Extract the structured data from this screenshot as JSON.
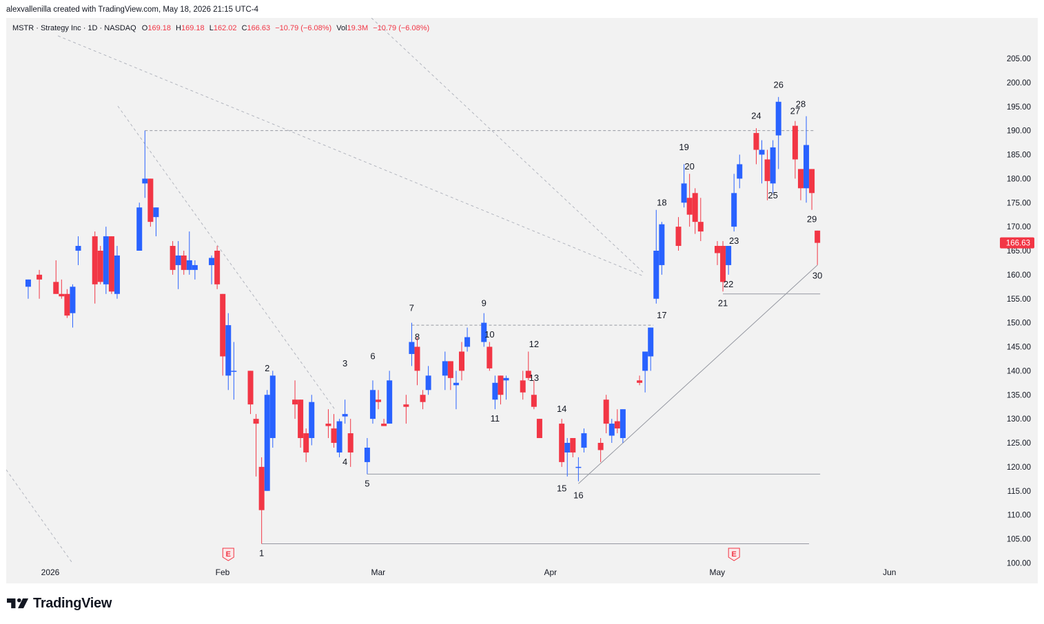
{
  "header": {
    "credit": "alexvallenilla created with TradingView.com, May 18, 2026 21:15 UTC-4"
  },
  "legend": {
    "symbol": "MSTR · Strategy Inc · 1D · NASDAQ",
    "open_label": "O",
    "open": "169.18",
    "high_label": "H",
    "high": "169.18",
    "low_label": "L",
    "low": "162.02",
    "close_label": "C",
    "close": "166.63",
    "change": "−10.79 (−6.08%)",
    "vol_label": "Vol",
    "vol": "19.3M",
    "vol_change": "−10.79 (−6.08%)"
  },
  "footer": {
    "brand": "TradingView"
  },
  "colors": {
    "up": "#2962ff",
    "down": "#f23645",
    "price_tag": "#f23645",
    "background": "#f2f2f2"
  },
  "chart_data": {
    "type": "candlestick",
    "y_axis_ticks": [
      "205.00",
      "200.00",
      "195.00",
      "190.00",
      "185.00",
      "180.00",
      "175.00",
      "170.00",
      "165.00",
      "160.00",
      "155.00",
      "150.00",
      "145.00",
      "140.00",
      "135.00",
      "130.00",
      "125.00",
      "120.00",
      "115.00",
      "110.00",
      "105.00",
      "100.00"
    ],
    "ylim": [
      97,
      209
    ],
    "x_axis_ticks": [
      {
        "label": "2026",
        "date": "2026-01-01"
      },
      {
        "label": "Feb",
        "date": "2026-02-01"
      },
      {
        "label": "Mar",
        "date": "2026-03-01"
      },
      {
        "label": "Apr",
        "date": "2026-04-01"
      },
      {
        "label": "May",
        "date": "2026-05-01"
      },
      {
        "label": "Jun",
        "date": "2026-06-01"
      }
    ],
    "last_price": "166.63",
    "candles": [
      {
        "date": "2025-12-31",
        "o": 157.5,
        "h": 159.0,
        "l": 155.0,
        "c": 159.0
      },
      {
        "date": "2026-01-02",
        "o": 160.0,
        "h": 161.0,
        "l": 155.0,
        "c": 159.0
      },
      {
        "date": "2026-01-05",
        "o": 158.5,
        "h": 163.0,
        "l": 156.0,
        "c": 156.0
      },
      {
        "date": "2026-01-06",
        "o": 156.0,
        "h": 159.0,
        "l": 155.0,
        "c": 155.5
      },
      {
        "date": "2026-01-07",
        "o": 156.0,
        "h": 157.0,
        "l": 151.0,
        "c": 151.5
      },
      {
        "date": "2026-01-08",
        "o": 152.0,
        "h": 158.0,
        "l": 149.0,
        "c": 157.5
      },
      {
        "date": "2026-01-09",
        "o": 165.0,
        "h": 168.0,
        "l": 162.0,
        "c": 166.0
      },
      {
        "date": "2026-01-12",
        "o": 168.0,
        "h": 169.0,
        "l": 154.0,
        "c": 158.0
      },
      {
        "date": "2026-01-13",
        "o": 165.0,
        "h": 166.0,
        "l": 158.0,
        "c": 158.5
      },
      {
        "date": "2026-01-14",
        "o": 158.0,
        "h": 170.0,
        "l": 156.0,
        "c": 168.0
      },
      {
        "date": "2026-01-15",
        "o": 168.0,
        "h": 168.0,
        "l": 156.0,
        "c": 156.5
      },
      {
        "date": "2026-01-16",
        "o": 156.0,
        "h": 166.0,
        "l": 155.0,
        "c": 164.0
      },
      {
        "date": "2026-01-20",
        "o": 165.0,
        "h": 175.0,
        "l": 165.0,
        "c": 174.0
      },
      {
        "date": "2026-01-21",
        "o": 179.0,
        "h": 190.0,
        "l": 176.0,
        "c": 180.0
      },
      {
        "date": "2026-01-22",
        "o": 180.0,
        "h": 180.0,
        "l": 170.0,
        "c": 171.0
      },
      {
        "date": "2026-01-23",
        "o": 172.0,
        "h": 174.0,
        "l": 168.0,
        "c": 174.0
      },
      {
        "date": "2026-01-26",
        "o": 166.0,
        "h": 167.0,
        "l": 160.0,
        "c": 161.0
      },
      {
        "date": "2026-01-27",
        "o": 162.0,
        "h": 167.0,
        "l": 157.0,
        "c": 164.0
      },
      {
        "date": "2026-01-28",
        "o": 164.0,
        "h": 165.0,
        "l": 160.0,
        "c": 161.0
      },
      {
        "date": "2026-01-29",
        "o": 161.0,
        "h": 169.0,
        "l": 160.0,
        "c": 163.0
      },
      {
        "date": "2026-01-30",
        "o": 161.0,
        "h": 163.0,
        "l": 159.0,
        "c": 162.0
      },
      {
        "date": "2026-02-02",
        "o": 162.0,
        "h": 164.0,
        "l": 158.0,
        "c": 163.5
      },
      {
        "date": "2026-02-03",
        "o": 165.0,
        "h": 166.0,
        "l": 157.0,
        "c": 158.0
      },
      {
        "date": "2026-02-04",
        "o": 156.0,
        "h": 156.0,
        "l": 139.0,
        "c": 143.0
      },
      {
        "date": "2026-02-05",
        "o": 139.0,
        "h": 152.0,
        "l": 136.0,
        "c": 149.5
      },
      {
        "date": "2026-02-06",
        "o": 140.0,
        "h": 146.0,
        "l": 134.0,
        "c": 140.0
      },
      {
        "date": "2026-02-09",
        "o": 140.0,
        "h": 140.0,
        "l": 131.0,
        "c": 133.0
      },
      {
        "date": "2026-02-10",
        "o": 130.0,
        "h": 131.0,
        "l": 118.0,
        "c": 129.0
      },
      {
        "date": "2026-02-11",
        "o": 120.0,
        "h": 122.0,
        "l": 104.0,
        "c": 111.0
      },
      {
        "date": "2026-02-12",
        "o": 115.0,
        "h": 136.0,
        "l": 115.0,
        "c": 135.0
      },
      {
        "date": "2026-02-13",
        "o": 126.0,
        "h": 140.0,
        "l": 124.0,
        "c": 139.0
      },
      {
        "date": "2026-02-17",
        "o": 134.0,
        "h": 138.0,
        "l": 130.0,
        "c": 133.0
      },
      {
        "date": "2026-02-18",
        "o": 134.0,
        "h": 134.0,
        "l": 124.0,
        "c": 126.0
      },
      {
        "date": "2026-02-19",
        "o": 127.0,
        "h": 128.0,
        "l": 121.0,
        "c": 123.0
      },
      {
        "date": "2026-02-20",
        "o": 126.0,
        "h": 135.0,
        "l": 124.5,
        "c": 133.5
      },
      {
        "date": "2026-02-23",
        "o": 129.0,
        "h": 132.0,
        "l": 126.0,
        "c": 128.5
      },
      {
        "date": "2026-02-24",
        "o": 128.0,
        "h": 131.0,
        "l": 124.0,
        "c": 125.0
      },
      {
        "date": "2026-02-25",
        "o": 123.0,
        "h": 130.0,
        "l": 122.0,
        "c": 129.5
      },
      {
        "date": "2026-02-26",
        "o": 130.5,
        "h": 134.0,
        "l": 129.0,
        "c": 131.0
      },
      {
        "date": "2026-02-27",
        "o": 127.0,
        "h": 130.0,
        "l": 120.0,
        "c": 123.0
      },
      {
        "date": "2026-03-02",
        "o": 121.0,
        "h": 126.0,
        "l": 118.5,
        "c": 124.0
      },
      {
        "date": "2026-03-03",
        "o": 130.0,
        "h": 138.0,
        "l": 129.0,
        "c": 136.0
      },
      {
        "date": "2026-03-04",
        "o": 134.0,
        "h": 136.0,
        "l": 132.0,
        "c": 133.5
      },
      {
        "date": "2026-03-05",
        "o": 129.0,
        "h": 130.0,
        "l": 129.0,
        "c": 128.5
      },
      {
        "date": "2026-03-06",
        "o": 129.0,
        "h": 140.0,
        "l": 129.0,
        "c": 138.0
      },
      {
        "date": "2026-03-09",
        "o": 133.0,
        "h": 135.0,
        "l": 129.0,
        "c": 132.5
      },
      {
        "date": "2026-03-10",
        "o": 143.5,
        "h": 150.0,
        "l": 141.0,
        "c": 146.0
      },
      {
        "date": "2026-03-11",
        "o": 145.0,
        "h": 147.0,
        "l": 137.0,
        "c": 140.0
      },
      {
        "date": "2026-03-12",
        "o": 135.0,
        "h": 136.0,
        "l": 132.0,
        "c": 133.5
      },
      {
        "date": "2026-03-13",
        "o": 136.0,
        "h": 141.0,
        "l": 135.0,
        "c": 139.0
      },
      {
        "date": "2026-03-16",
        "o": 139.0,
        "h": 144.0,
        "l": 136.0,
        "c": 142.0
      },
      {
        "date": "2026-03-17",
        "o": 142.0,
        "h": 142.0,
        "l": 136.0,
        "c": 138.5
      },
      {
        "date": "2026-03-18",
        "o": 137.0,
        "h": 140.0,
        "l": 132.0,
        "c": 137.5
      },
      {
        "date": "2026-03-19",
        "o": 144.0,
        "h": 146.0,
        "l": 138.0,
        "c": 140.0
      },
      {
        "date": "2026-03-20",
        "o": 145.0,
        "h": 149.0,
        "l": 144.0,
        "c": 147.0
      },
      {
        "date": "2026-03-23",
        "o": 146.0,
        "h": 152.0,
        "l": 145.0,
        "c": 150.0
      },
      {
        "date": "2026-03-24",
        "o": 145.0,
        "h": 146.0,
        "l": 140.0,
        "c": 140.5
      },
      {
        "date": "2026-03-25",
        "o": 134.0,
        "h": 139.0,
        "l": 132.0,
        "c": 137.5
      },
      {
        "date": "2026-03-26",
        "o": 139.0,
        "h": 139.0,
        "l": 133.0,
        "c": 135.0
      },
      {
        "date": "2026-03-27",
        "o": 138.0,
        "h": 139.0,
        "l": 134.0,
        "c": 138.5
      },
      {
        "date": "2026-03-30",
        "o": 138.0,
        "h": 140.0,
        "l": 134.0,
        "c": 135.5
      },
      {
        "date": "2026-03-31",
        "o": 140.0,
        "h": 144.0,
        "l": 138.0,
        "c": 138.5
      },
      {
        "date": "2026-04-01",
        "o": 135.0,
        "h": 138.0,
        "l": 132.0,
        "c": 132.5
      },
      {
        "date": "2026-04-02",
        "o": 130.0,
        "h": 130.0,
        "l": 126.0,
        "c": 126.0
      },
      {
        "date": "2026-04-06",
        "o": 129.0,
        "h": 130.0,
        "l": 120.0,
        "c": 121.0
      },
      {
        "date": "2026-04-07",
        "o": 123.0,
        "h": 126.0,
        "l": 118.0,
        "c": 125.0
      },
      {
        "date": "2026-04-08",
        "o": 126.0,
        "h": 126.0,
        "l": 122.0,
        "c": 123.0
      },
      {
        "date": "2026-04-09",
        "o": 120.0,
        "h": 122.0,
        "l": 117.0,
        "c": 120.0
      },
      {
        "date": "2026-04-10",
        "o": 124.0,
        "h": 128.0,
        "l": 123.0,
        "c": 127.0
      },
      {
        "date": "2026-04-13",
        "o": 125.0,
        "h": 126.0,
        "l": 121.0,
        "c": 123.5
      },
      {
        "date": "2026-04-14",
        "o": 134.0,
        "h": 135.0,
        "l": 127.0,
        "c": 129.0
      },
      {
        "date": "2026-04-15",
        "o": 126.5,
        "h": 130.0,
        "l": 125.0,
        "c": 129.0
      },
      {
        "date": "2026-04-16",
        "o": 129.5,
        "h": 132.0,
        "l": 127.0,
        "c": 128.0
      },
      {
        "date": "2026-04-17",
        "o": 126.0,
        "h": 132.0,
        "l": 125.0,
        "c": 132.0
      },
      {
        "date": "2026-04-20",
        "o": 138.0,
        "h": 139.0,
        "l": 137.0,
        "c": 137.5
      },
      {
        "date": "2026-04-21",
        "o": 140.0,
        "h": 144.0,
        "l": 135.5,
        "c": 144.0
      },
      {
        "date": "2026-04-22",
        "o": 143.0,
        "h": 149.0,
        "l": 140.0,
        "c": 149.0
      },
      {
        "date": "2026-04-23",
        "o": 155.0,
        "h": 173.5,
        "l": 154.0,
        "c": 165.0
      },
      {
        "date": "2026-04-24",
        "o": 162.0,
        "h": 171.0,
        "l": 160.0,
        "c": 170.5
      },
      {
        "date": "2026-04-27",
        "o": 170.0,
        "h": 172.0,
        "l": 165.0,
        "c": 166.0
      },
      {
        "date": "2026-04-28",
        "o": 175.0,
        "h": 183.0,
        "l": 174.0,
        "c": 179.0
      },
      {
        "date": "2026-04-29",
        "o": 176.0,
        "h": 181.0,
        "l": 170.0,
        "c": 172.5
      },
      {
        "date": "2026-04-30",
        "o": 177.0,
        "h": 178.0,
        "l": 168.5,
        "c": 171.0
      },
      {
        "date": "2026-05-01",
        "o": 171.0,
        "h": 176.0,
        "l": 167.0,
        "c": 169.0
      },
      {
        "date": "2026-05-04",
        "o": 166.0,
        "h": 167.0,
        "l": 162.0,
        "c": 164.5
      },
      {
        "date": "2026-05-05",
        "o": 166.0,
        "h": 167.0,
        "l": 156.5,
        "c": 158.5
      },
      {
        "date": "2026-05-06",
        "o": 162.0,
        "h": 166.0,
        "l": 160.0,
        "c": 166.0
      },
      {
        "date": "2026-05-07",
        "o": 170.0,
        "h": 181.0,
        "l": 169.0,
        "c": 177.0
      },
      {
        "date": "2026-05-08",
        "o": 180.0,
        "h": 185.0,
        "l": 178.0,
        "c": 183.0
      },
      {
        "date": "2026-05-11",
        "o": 189.5,
        "h": 190.5,
        "l": 183.0,
        "c": 186.0
      },
      {
        "date": "2026-05-12",
        "o": 185.0,
        "h": 188.0,
        "l": 179.0,
        "c": 186.0
      },
      {
        "date": "2026-05-13",
        "o": 184.0,
        "h": 186.0,
        "l": 175.5,
        "c": 179.5
      },
      {
        "date": "2026-05-14",
        "o": 179.0,
        "h": 188.0,
        "l": 177.0,
        "c": 186.5
      },
      {
        "date": "2026-05-15",
        "o": 189.0,
        "h": 197.0,
        "l": 182.0,
        "c": 196.0
      },
      {
        "date": "2026-05-18",
        "o": 191.0,
        "h": 192.0,
        "l": 180.0,
        "c": 184.0
      },
      {
        "date": "2026-05-19",
        "o": 182.0,
        "h": 182.0,
        "l": 175.5,
        "c": 178.0
      },
      {
        "date": "2026-05-20",
        "o": 178.0,
        "h": 193.0,
        "l": 175.0,
        "c": 187.0
      },
      {
        "date": "2026-05-21",
        "o": 182.0,
        "h": 182.0,
        "l": 173.5,
        "c": 177.0
      },
      {
        "date": "2026-05-22",
        "o": 169.18,
        "h": 169.18,
        "l": 162.02,
        "c": 166.63
      }
    ],
    "wave_labels": [
      {
        "text": "1",
        "date": "2026-02-11",
        "price": 102.0
      },
      {
        "text": "2",
        "date": "2026-02-12",
        "price": 140.5
      },
      {
        "text": "3",
        "date": "2026-02-26",
        "price": 141.5
      },
      {
        "text": "4",
        "date": "2026-02-26",
        "price": 121.0
      },
      {
        "text": "5",
        "date": "2026-03-02",
        "price": 116.5
      },
      {
        "text": "6",
        "date": "2026-03-03",
        "price": 143.0
      },
      {
        "text": "7",
        "date": "2026-03-10",
        "price": 153.0
      },
      {
        "text": "8",
        "date": "2026-03-11",
        "price": 147.0
      },
      {
        "text": "9",
        "date": "2026-03-23",
        "price": 154.0
      },
      {
        "text": "10",
        "date": "2026-03-24",
        "price": 147.5
      },
      {
        "text": "11",
        "date": "2026-03-25",
        "price": 130.0
      },
      {
        "text": "12",
        "date": "2026-04-01",
        "price": 145.5
      },
      {
        "text": "13",
        "date": "2026-04-01",
        "price": 138.5
      },
      {
        "text": "14",
        "date": "2026-04-06",
        "price": 132.0
      },
      {
        "text": "15",
        "date": "2026-04-06",
        "price": 115.5
      },
      {
        "text": "16",
        "date": "2026-04-09",
        "price": 114.0
      },
      {
        "text": "17",
        "date": "2026-04-24",
        "price": 151.5
      },
      {
        "text": "18",
        "date": "2026-04-24",
        "price": 175.0
      },
      {
        "text": "19",
        "date": "2026-04-28",
        "price": 186.5
      },
      {
        "text": "20",
        "date": "2026-04-29",
        "price": 182.5
      },
      {
        "text": "21",
        "date": "2026-05-05",
        "price": 154.0
      },
      {
        "text": "22",
        "date": "2026-05-06",
        "price": 158.0
      },
      {
        "text": "23",
        "date": "2026-05-07",
        "price": 167.0
      },
      {
        "text": "24",
        "date": "2026-05-11",
        "price": 193.0
      },
      {
        "text": "25",
        "date": "2026-05-14",
        "price": 176.5
      },
      {
        "text": "26",
        "date": "2026-05-15",
        "price": 199.5
      },
      {
        "text": "27",
        "date": "2026-05-18",
        "price": 194.0
      },
      {
        "text": "28",
        "date": "2026-05-19",
        "price": 195.5
      },
      {
        "text": "29",
        "date": "2026-05-21",
        "price": 171.5
      },
      {
        "text": "30",
        "date": "2026-05-22",
        "price": 159.8
      }
    ],
    "earnings_markers": [
      {
        "label": "E",
        "date": "2026-02-05"
      },
      {
        "label": "E",
        "date": "2026-05-07"
      }
    ],
    "horizontal_lines": [
      {
        "price": 190.0,
        "from": "2026-01-21",
        "to": "2026-05-21",
        "style": "dashed"
      },
      {
        "price": 149.5,
        "from": "2026-03-10",
        "to": "2026-04-22",
        "style": "dashed"
      },
      {
        "price": 156.0,
        "from": "2026-05-05",
        "to": "2026-05-22",
        "style": "solid"
      },
      {
        "price": 118.5,
        "from": "2026-03-02",
        "to": "2026-05-22",
        "style": "solid"
      },
      {
        "price": 104.0,
        "from": "2026-02-11",
        "to": "2026-05-20",
        "style": "solid"
      }
    ],
    "trend_lines": [
      {
        "from_date": "2026-04-09",
        "from_price": 116.5,
        "to_date": "2026-05-22",
        "to_price": 162.0,
        "style": "solid"
      }
    ]
  }
}
